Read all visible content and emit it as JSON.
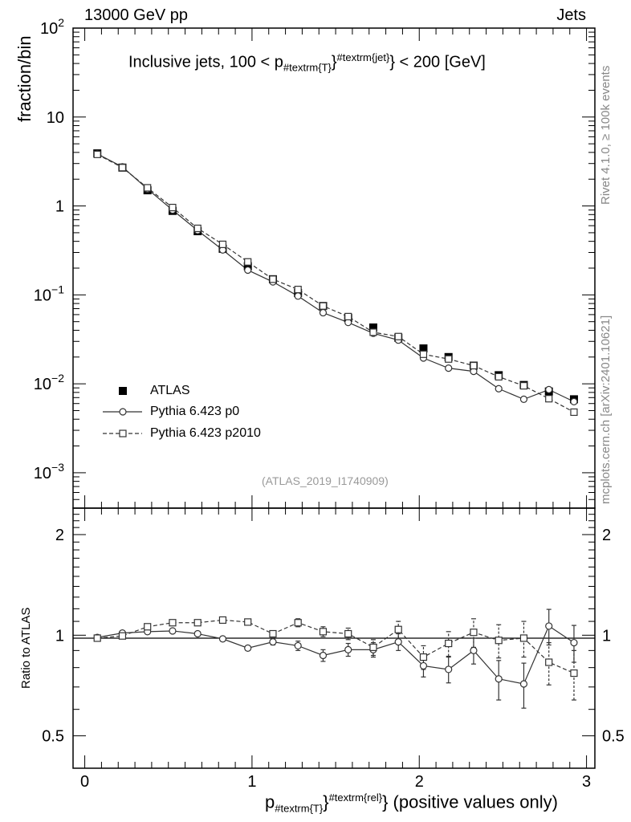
{
  "header": {
    "left": "13000 GeV pp",
    "right": "Jets"
  },
  "side_labels": {
    "rivet": "Rivet 4.1.0, ≥ 100k events",
    "mcplots": "mcplots.cern.ch [arXiv:2401.10621]"
  },
  "chart_data": {
    "type": "scatter",
    "title_parts": {
      "pre": "Inclusive jets, 100 < p",
      "sub": "#textrm{T}",
      "sup": "#textrm{jet}",
      "post": "} < 200 [GeV]"
    },
    "analysis_id": "(ATLAS_2019_I1740909)",
    "ylabel": "fraction/bin",
    "ratio_ylabel": "Ratio to ATLAS",
    "xlabel_parts": {
      "pre": "p",
      "sub": "#textrm{T}",
      "sup": "#textrm{rel}",
      "post": "} (positive values only)"
    },
    "xlim": [
      -0.07,
      3.05
    ],
    "ylim_log": [
      0.0004,
      100
    ],
    "ratio_ylim": [
      0.4,
      2.4
    ],
    "x_ticks": [
      "0",
      "1",
      "2",
      "3"
    ],
    "y_ticks": [
      {
        "base": "10",
        "exp": "2"
      },
      {
        "base": "10",
        "exp": ""
      },
      {
        "base": "1",
        "exp": ""
      },
      {
        "base": "10",
        "exp": "−1"
      },
      {
        "base": "10",
        "exp": "−2"
      },
      {
        "base": "10",
        "exp": "−3"
      }
    ],
    "ratio_ticks_left": [
      "2",
      "1",
      "0.5"
    ],
    "ratio_ticks_right": [
      "2",
      "1",
      "0.5"
    ],
    "x": [
      0.075,
      0.225,
      0.375,
      0.525,
      0.675,
      0.825,
      0.975,
      1.125,
      1.275,
      1.425,
      1.575,
      1.725,
      1.875,
      2.025,
      2.175,
      2.325,
      2.475,
      2.625,
      2.775,
      2.925
    ],
    "series": [
      {
        "name": "ATLAS",
        "style": "data",
        "values": [
          3.9,
          2.7,
          1.5,
          0.88,
          0.52,
          0.33,
          0.21,
          0.15,
          0.105,
          0.075,
          0.055,
          0.043,
          0.033,
          0.025,
          0.02,
          0.016,
          0.0125,
          0.0097,
          0.0082,
          0.0067
        ]
      },
      {
        "name": "Pythia 6.423 p0",
        "style": "solid-circle",
        "values": [
          3.85,
          2.75,
          1.55,
          0.9,
          0.53,
          0.32,
          0.19,
          0.14,
          0.097,
          0.063,
          0.049,
          0.037,
          0.031,
          0.0195,
          0.015,
          0.0138,
          0.0088,
          0.0067,
          0.0086,
          0.0063
        ],
        "ratio": [
          0.985,
          1.015,
          1.025,
          1.03,
          1.01,
          0.975,
          0.915,
          0.955,
          0.93,
          0.87,
          0.905,
          0.905,
          0.955,
          0.81,
          0.79,
          0.9,
          0.74,
          0.715,
          1.065,
          0.95
        ],
        "ratio_err": [
          0.005,
          0.008,
          0.008,
          0.01,
          0.01,
          0.012,
          0.015,
          0.02,
          0.03,
          0.035,
          0.04,
          0.045,
          0.055,
          0.06,
          0.07,
          0.08,
          0.1,
          0.11,
          0.13,
          0.12
        ]
      },
      {
        "name": "Pythia 6.423 p2010",
        "style": "dashed-square",
        "values": [
          3.8,
          2.7,
          1.6,
          0.96,
          0.56,
          0.37,
          0.235,
          0.15,
          0.115,
          0.075,
          0.057,
          0.038,
          0.034,
          0.0215,
          0.019,
          0.016,
          0.012,
          0.0095,
          0.0068,
          0.0048
        ],
        "ratio": [
          0.98,
          0.995,
          1.06,
          1.09,
          1.09,
          1.11,
          1.095,
          1.01,
          1.09,
          1.025,
          1.01,
          0.92,
          1.04,
          0.86,
          0.945,
          1.02,
          0.965,
          0.98,
          0.83,
          0.77
        ],
        "ratio_err": [
          0.005,
          0.008,
          0.01,
          0.01,
          0.012,
          0.015,
          0.018,
          0.022,
          0.03,
          0.035,
          0.04,
          0.05,
          0.06,
          0.07,
          0.08,
          0.1,
          0.11,
          0.12,
          0.12,
          0.13
        ]
      }
    ]
  }
}
